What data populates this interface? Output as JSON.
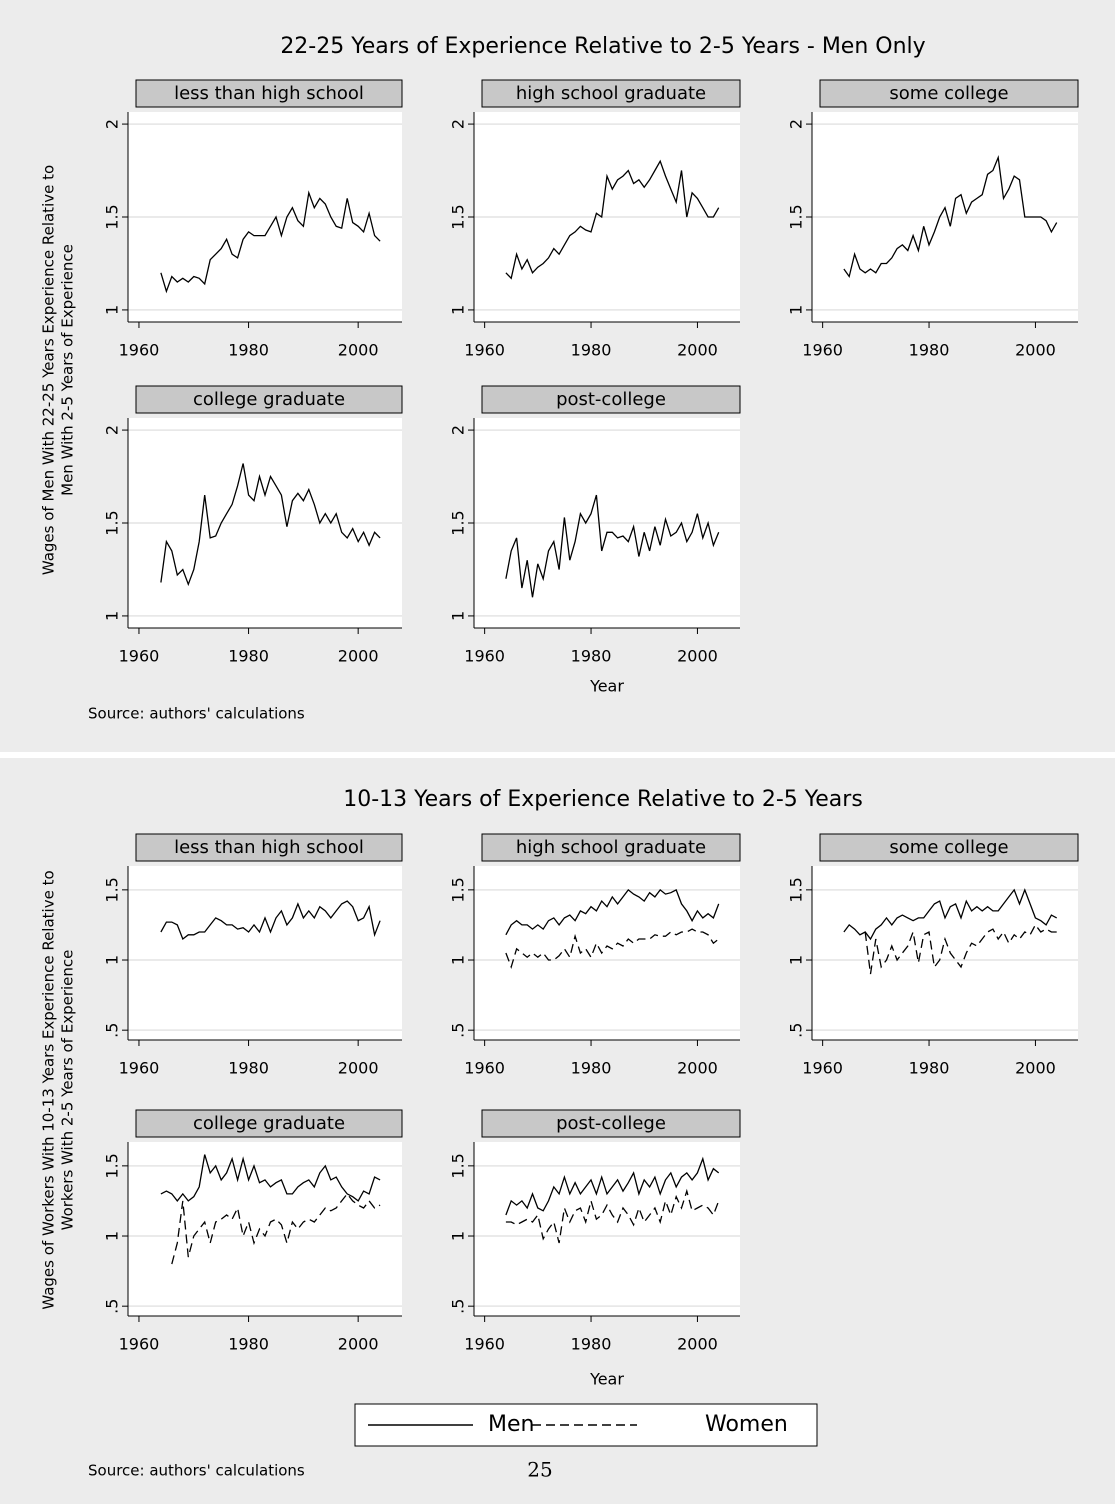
{
  "chart_data": [
    {
      "type": "line",
      "title": "22-25 Years of Experience Relative to 2-5 Years - Men Only",
      "ylabel": [
        "Wages of Men With 22-25 Years Experience Relative to",
        "Men With 2-5 Years of Experience"
      ],
      "xlabel": "Year",
      "source": "Source: authors' calculations",
      "x": [
        1964,
        1965,
        1966,
        1967,
        1968,
        1969,
        1970,
        1971,
        1972,
        1973,
        1974,
        1975,
        1976,
        1977,
        1978,
        1979,
        1980,
        1981,
        1982,
        1983,
        1984,
        1985,
        1986,
        1987,
        1988,
        1989,
        1990,
        1991,
        1992,
        1993,
        1994,
        1995,
        1996,
        1997,
        1998,
        1999,
        2000,
        2001,
        2002,
        2003,
        2004
      ],
      "xlim": [
        1958,
        2008
      ],
      "xticks": [
        1960,
        1980,
        2000
      ],
      "ylim": [
        0.935,
        2.065
      ],
      "yticks": [
        1,
        1.5,
        2
      ],
      "grid": true,
      "panels": [
        {
          "title": "less than high school",
          "series": [
            {
              "color": "#000000",
              "dash": "solid",
              "values": [
                1.2,
                1.1,
                1.18,
                1.15,
                1.17,
                1.15,
                1.18,
                1.17,
                1.14,
                1.27,
                1.3,
                1.33,
                1.38,
                1.3,
                1.28,
                1.38,
                1.42,
                1.4,
                1.4,
                1.4,
                1.45,
                1.5,
                1.4,
                1.5,
                1.55,
                1.48,
                1.45,
                1.63,
                1.55,
                1.6,
                1.57,
                1.5,
                1.45,
                1.44,
                1.6,
                1.47,
                1.45,
                1.42,
                1.52,
                1.4,
                1.37
              ]
            }
          ]
        },
        {
          "title": "high school graduate",
          "series": [
            {
              "color": "#000000",
              "dash": "solid",
              "values": [
                1.2,
                1.17,
                1.3,
                1.22,
                1.27,
                1.2,
                1.23,
                1.25,
                1.28,
                1.33,
                1.3,
                1.35,
                1.4,
                1.42,
                1.45,
                1.43,
                1.42,
                1.52,
                1.5,
                1.72,
                1.65,
                1.7,
                1.72,
                1.75,
                1.68,
                1.7,
                1.66,
                1.7,
                1.75,
                1.8,
                1.72,
                1.65,
                1.58,
                1.75,
                1.5,
                1.63,
                1.6,
                1.55,
                1.5,
                1.5,
                1.55
              ]
            }
          ]
        },
        {
          "title": "some college",
          "series": [
            {
              "color": "#000000",
              "dash": "solid",
              "values": [
                1.22,
                1.18,
                1.3,
                1.22,
                1.2,
                1.22,
                1.2,
                1.25,
                1.25,
                1.28,
                1.33,
                1.35,
                1.32,
                1.4,
                1.32,
                1.45,
                1.35,
                1.42,
                1.5,
                1.55,
                1.45,
                1.6,
                1.62,
                1.52,
                1.58,
                1.6,
                1.62,
                1.73,
                1.75,
                1.82,
                1.6,
                1.65,
                1.72,
                1.7,
                1.5,
                1.5,
                1.5,
                1.5,
                1.48,
                1.42,
                1.47
              ]
            }
          ]
        },
        {
          "title": "college graduate",
          "series": [
            {
              "color": "#000000",
              "dash": "solid",
              "values": [
                1.18,
                1.4,
                1.35,
                1.22,
                1.25,
                1.17,
                1.25,
                1.4,
                1.65,
                1.42,
                1.43,
                1.5,
                1.55,
                1.6,
                1.7,
                1.82,
                1.65,
                1.62,
                1.75,
                1.65,
                1.75,
                1.7,
                1.65,
                1.48,
                1.62,
                1.66,
                1.62,
                1.68,
                1.6,
                1.5,
                1.55,
                1.5,
                1.55,
                1.45,
                1.42,
                1.47,
                1.4,
                1.45,
                1.38,
                1.45,
                1.42
              ]
            }
          ]
        },
        {
          "title": "post-college",
          "series": [
            {
              "color": "#000000",
              "dash": "solid",
              "values": [
                1.2,
                1.35,
                1.42,
                1.15,
                1.3,
                1.1,
                1.28,
                1.2,
                1.35,
                1.4,
                1.25,
                1.53,
                1.3,
                1.4,
                1.55,
                1.5,
                1.55,
                1.65,
                1.35,
                1.45,
                1.45,
                1.42,
                1.43,
                1.4,
                1.48,
                1.32,
                1.45,
                1.35,
                1.48,
                1.38,
                1.52,
                1.43,
                1.45,
                1.5,
                1.4,
                1.45,
                1.55,
                1.42,
                1.5,
                1.38,
                1.45
              ]
            }
          ]
        }
      ]
    },
    {
      "type": "line",
      "title": "10-13 Years of Experience Relative to 2-5 Years",
      "ylabel": [
        "Wages of Workers With 10-13 Years Experience Relative to",
        "Workers With 2-5 Years of Experience"
      ],
      "xlabel": "Year",
      "source": "Source: authors' calculations",
      "x": [
        1964,
        1965,
        1966,
        1967,
        1968,
        1969,
        1970,
        1971,
        1972,
        1973,
        1974,
        1975,
        1976,
        1977,
        1978,
        1979,
        1980,
        1981,
        1982,
        1983,
        1984,
        1985,
        1986,
        1987,
        1988,
        1989,
        1990,
        1991,
        1992,
        1993,
        1994,
        1995,
        1996,
        1997,
        1998,
        1999,
        2000,
        2001,
        2002,
        2003,
        2004
      ],
      "xlim": [
        1958,
        2008
      ],
      "xticks": [
        1960,
        1980,
        2000
      ],
      "ylim": [
        0.43,
        1.67
      ],
      "yticks": [
        {
          "value": 0.5,
          "label": ".5"
        },
        1,
        1.5
      ],
      "grid": true,
      "legend": "bottom",
      "panels": [
        {
          "title": "less than high school",
          "series": [
            {
              "name": "Men",
              "color": "#000000",
              "dash": "solid",
              "values": [
                1.2,
                1.27,
                1.27,
                1.25,
                1.15,
                1.18,
                1.18,
                1.2,
                1.2,
                1.25,
                1.3,
                1.28,
                1.25,
                1.25,
                1.22,
                1.23,
                1.2,
                1.25,
                1.2,
                1.3,
                1.2,
                1.3,
                1.35,
                1.25,
                1.3,
                1.4,
                1.3,
                1.35,
                1.3,
                1.38,
                1.35,
                1.3,
                1.35,
                1.4,
                1.42,
                1.38,
                1.28,
                1.3,
                1.38,
                1.18,
                1.28
              ]
            }
          ]
        },
        {
          "title": "high school graduate",
          "series": [
            {
              "name": "Men",
              "color": "#000000",
              "dash": "solid",
              "values": [
                1.18,
                1.25,
                1.28,
                1.25,
                1.25,
                1.22,
                1.25,
                1.22,
                1.28,
                1.3,
                1.25,
                1.3,
                1.32,
                1.28,
                1.35,
                1.33,
                1.38,
                1.35,
                1.42,
                1.38,
                1.45,
                1.4,
                1.45,
                1.5,
                1.47,
                1.45,
                1.42,
                1.48,
                1.45,
                1.5,
                1.47,
                1.48,
                1.5,
                1.4,
                1.35,
                1.28,
                1.35,
                1.3,
                1.33,
                1.3,
                1.4
              ]
            },
            {
              "name": "Women",
              "color": "#000000",
              "dash": "dashed",
              "values": [
                1.05,
                0.95,
                1.08,
                1.05,
                1.02,
                1.05,
                1.02,
                1.05,
                1.0,
                1.0,
                1.03,
                1.08,
                1.02,
                1.17,
                1.05,
                1.08,
                1.02,
                1.12,
                1.05,
                1.1,
                1.08,
                1.12,
                1.1,
                1.15,
                1.12,
                1.15,
                1.15,
                1.15,
                1.18,
                1.17,
                1.17,
                1.2,
                1.18,
                1.2,
                1.2,
                1.22,
                1.2,
                1.2,
                1.18,
                1.12,
                1.15
              ]
            }
          ]
        },
        {
          "title": "some college",
          "series": [
            {
              "name": "Men",
              "color": "#000000",
              "dash": "solid",
              "values": [
                1.2,
                1.25,
                1.22,
                1.18,
                1.2,
                1.15,
                1.22,
                1.25,
                1.3,
                1.25,
                1.3,
                1.32,
                1.3,
                1.28,
                1.3,
                1.3,
                1.35,
                1.4,
                1.42,
                1.3,
                1.38,
                1.4,
                1.3,
                1.42,
                1.35,
                1.38,
                1.35,
                1.38,
                1.35,
                1.35,
                1.4,
                1.45,
                1.5,
                1.4,
                1.5,
                1.4,
                1.3,
                1.28,
                1.25,
                1.32,
                1.3
              ]
            },
            {
              "name": "Women",
              "color": "#000000",
              "dash": "dashed",
              "values": [
                null,
                null,
                null,
                null,
                1.2,
                0.9,
                1.15,
                0.95,
                1.0,
                1.1,
                1.0,
                1.05,
                1.1,
                1.2,
                0.98,
                1.18,
                1.2,
                0.95,
                1.0,
                1.15,
                1.05,
                1.0,
                0.95,
                1.05,
                1.12,
                1.1,
                1.15,
                1.2,
                1.22,
                1.15,
                1.2,
                1.12,
                1.18,
                1.15,
                1.2,
                1.18,
                1.25,
                1.2,
                1.22,
                1.2,
                1.2
              ]
            }
          ]
        },
        {
          "title": "college graduate",
          "series": [
            {
              "name": "Men",
              "color": "#000000",
              "dash": "solid",
              "values": [
                1.3,
                1.32,
                1.3,
                1.25,
                1.3,
                1.25,
                1.28,
                1.35,
                1.58,
                1.45,
                1.5,
                1.4,
                1.45,
                1.55,
                1.4,
                1.55,
                1.4,
                1.5,
                1.38,
                1.4,
                1.35,
                1.38,
                1.4,
                1.3,
                1.3,
                1.35,
                1.38,
                1.4,
                1.35,
                1.45,
                1.5,
                1.4,
                1.42,
                1.35,
                1.3,
                1.28,
                1.25,
                1.32,
                1.3,
                1.42,
                1.4
              ]
            },
            {
              "name": "Women",
              "color": "#000000",
              "dash": "dashed",
              "values": [
                null,
                null,
                0.8,
                0.95,
                1.25,
                0.85,
                1.0,
                1.05,
                1.1,
                0.95,
                1.1,
                1.12,
                1.15,
                1.12,
                1.2,
                1.0,
                1.1,
                0.95,
                1.05,
                1.0,
                1.1,
                1.12,
                1.08,
                0.95,
                1.1,
                1.05,
                1.1,
                1.12,
                1.1,
                1.15,
                1.2,
                1.18,
                1.2,
                1.25,
                1.3,
                1.25,
                1.22,
                1.2,
                1.25,
                1.2,
                1.22
              ]
            }
          ]
        },
        {
          "title": "post-college",
          "series": [
            {
              "name": "Men",
              "color": "#000000",
              "dash": "solid",
              "values": [
                1.15,
                1.25,
                1.22,
                1.25,
                1.2,
                1.3,
                1.2,
                1.18,
                1.25,
                1.35,
                1.3,
                1.42,
                1.3,
                1.38,
                1.3,
                1.35,
                1.4,
                1.3,
                1.42,
                1.3,
                1.35,
                1.4,
                1.32,
                1.38,
                1.45,
                1.3,
                1.4,
                1.35,
                1.42,
                1.3,
                1.4,
                1.45,
                1.35,
                1.42,
                1.45,
                1.4,
                1.45,
                1.55,
                1.4,
                1.48,
                1.45
              ]
            },
            {
              "name": "Women",
              "color": "#000000",
              "dash": "dashed",
              "values": [
                1.1,
                1.1,
                1.08,
                1.1,
                1.12,
                1.1,
                1.15,
                0.98,
                1.05,
                1.1,
                0.95,
                1.2,
                1.1,
                1.18,
                1.2,
                1.1,
                1.25,
                1.12,
                1.15,
                1.22,
                1.15,
                1.1,
                1.2,
                1.15,
                1.08,
                1.2,
                1.1,
                1.15,
                1.2,
                1.1,
                1.25,
                1.15,
                1.28,
                1.2,
                1.32,
                1.18,
                1.2,
                1.22,
                1.2,
                1.15,
                1.25
              ]
            }
          ]
        }
      ]
    }
  ],
  "page_number": "25"
}
